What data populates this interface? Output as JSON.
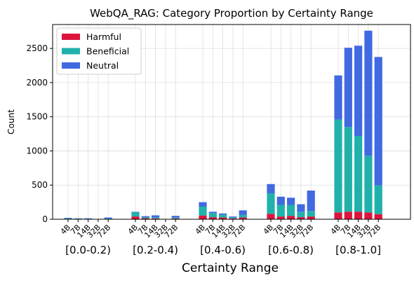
{
  "chart_data": {
    "type": "bar",
    "stacked": true,
    "title": "WebQA_RAG: Category Proportion by Certainty Range",
    "xlabel": "Certainty Range",
    "ylabel": "Count",
    "ylim": [
      0,
      2850
    ],
    "yticks": [
      0,
      500,
      1000,
      1500,
      2000,
      2500
    ],
    "grid": true,
    "legend_position": "top-left",
    "groups": [
      "[0.0-0.2)",
      "[0.2-0.4)",
      "[0.4-0.6)",
      "[0.6-0.8)",
      "[0.8-1.0]"
    ],
    "models": [
      "4B",
      "7B",
      "14B",
      "32B",
      "72B"
    ],
    "series": [
      {
        "name": "Harmful",
        "color": "#dc143c",
        "values": [
          [
            5,
            3,
            3,
            0,
            4
          ],
          [
            40,
            15,
            12,
            0,
            12
          ],
          [
            55,
            30,
            25,
            12,
            25
          ],
          [
            80,
            40,
            50,
            30,
            40
          ],
          [
            100,
            110,
            110,
            100,
            75
          ]
        ]
      },
      {
        "name": "Beneficial",
        "color": "#20b2aa",
        "values": [
          [
            5,
            5,
            5,
            0,
            6
          ],
          [
            65,
            15,
            15,
            0,
            12
          ],
          [
            130,
            60,
            40,
            15,
            40
          ],
          [
            300,
            170,
            160,
            80,
            80
          ],
          [
            1360,
            1240,
            1110,
            830,
            420
          ]
        ]
      },
      {
        "name": "Neutral",
        "color": "#4169e1",
        "values": [
          [
            10,
            6,
            7,
            0,
            15
          ],
          [
            5,
            15,
            30,
            0,
            26
          ],
          [
            65,
            20,
            20,
            13,
            65
          ],
          [
            135,
            120,
            105,
            110,
            300
          ],
          [
            645,
            1160,
            1320,
            1830,
            1880
          ]
        ]
      }
    ]
  }
}
